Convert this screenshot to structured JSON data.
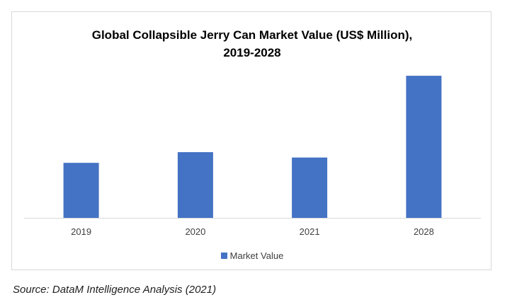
{
  "chart_data": {
    "type": "bar",
    "title_line1": "Global Collapsible Jerry Can Market Value (US$ Million),",
    "title_line2": "2019-2028",
    "categories": [
      "2019",
      "2020",
      "2021",
      "2028"
    ],
    "series": [
      {
        "name": "Market Value",
        "values": [
          72,
          86,
          79,
          186
        ],
        "color": "#4472c4"
      }
    ],
    "ylim": [
      0,
      200
    ],
    "grid": false,
    "legend_position": "bottom"
  },
  "source": "Source: DataM Intelligence Analysis (2021)"
}
